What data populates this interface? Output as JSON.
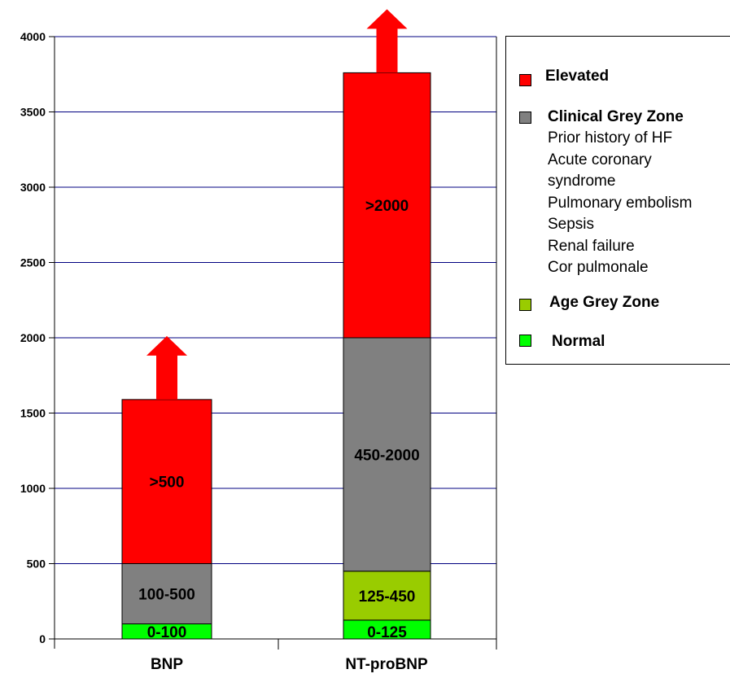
{
  "chart_data": {
    "type": "bar",
    "stacked": true,
    "ylim": [
      0,
      4000
    ],
    "yticks": [
      "0",
      "500",
      "1000",
      "1500",
      "2000",
      "2500",
      "3000",
      "3500",
      "4000"
    ],
    "grid": true,
    "legend_position": "right",
    "categories": [
      {
        "label": "BNP",
        "segments": [
          {
            "category": "normal",
            "from": 0,
            "to": 100,
            "label": "0-100"
          },
          {
            "category": "clinical_grey",
            "from": 100,
            "to": 500,
            "label": "100-500"
          },
          {
            "category": "elevated",
            "from": 500,
            "to": 1590,
            "label": ">500"
          }
        ],
        "arrow": true
      },
      {
        "label": "NT-proBNP",
        "segments": [
          {
            "category": "normal",
            "from": 0,
            "to": 125,
            "label": "0-125"
          },
          {
            "category": "age_grey",
            "from": 125,
            "to": 450,
            "label": "125-450"
          },
          {
            "category": "clinical_grey",
            "from": 450,
            "to": 2000,
            "label": "450-2000"
          },
          {
            "category": "elevated",
            "from": 2000,
            "to": 3760,
            "label": ">2000"
          }
        ],
        "arrow": true
      }
    ],
    "colors": {
      "elevated": "#ff0000",
      "clinical_grey": "#808080",
      "age_grey": "#99cc00",
      "normal": "#00ff00",
      "grid": "#000080",
      "arrow": "#ff0000"
    },
    "legend": [
      {
        "key": "elevated",
        "title": "Elevated",
        "items": []
      },
      {
        "key": "clinical_grey",
        "title": "Clinical Grey Zone",
        "items": [
          "Prior history of HF",
          "Acute coronary",
          "syndrome",
          "Pulmonary embolism",
          "Sepsis",
          "Renal failure",
          "Cor pulmonale"
        ]
      },
      {
        "key": "age_grey",
        "title": "Age Grey Zone",
        "items": []
      },
      {
        "key": "normal",
        "title": "Normal",
        "items": []
      }
    ]
  }
}
